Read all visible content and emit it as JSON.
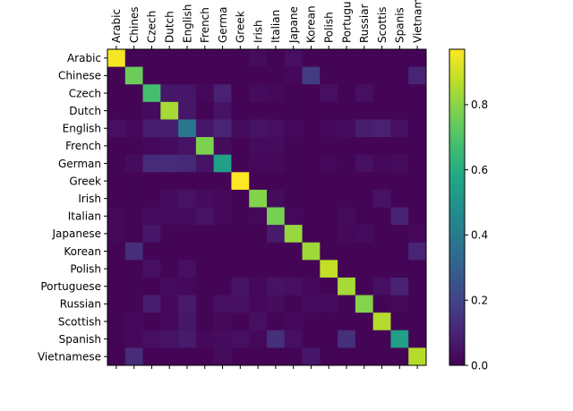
{
  "chart_data": {
    "type": "heatmap",
    "title": "",
    "xlabel": "",
    "ylabel": "",
    "x_tick_labels_displayed": [
      "Arabic",
      "Chines",
      "Czech",
      "Dutch",
      "English",
      "French",
      "Germa",
      "Greek",
      "Irish",
      "Italian",
      "Japane",
      "Korean",
      "Polish",
      "Portugu",
      "Russiar",
      "Scottis",
      "Spanis",
      "Vietnam"
    ],
    "y_tick_labels": [
      "Arabic",
      "Chinese",
      "Czech",
      "Dutch",
      "English",
      "French",
      "German",
      "Greek",
      "Irish",
      "Italian",
      "Japanese",
      "Korean",
      "Polish",
      "Portuguese",
      "Russian",
      "Scottish",
      "Spanish",
      "Vietnamese"
    ],
    "colorbar": {
      "min": 0.0,
      "max": 0.97,
      "ticks": [
        0.0,
        0.2,
        0.4,
        0.6,
        0.8
      ],
      "tick_labels": [
        "0.0",
        "0.2",
        "0.4",
        "0.6",
        "0.8"
      ],
      "colormap": "viridis"
    },
    "matrix": [
      [
        0.96,
        0.01,
        0.01,
        0.01,
        0.01,
        0.01,
        0.01,
        0.01,
        0.03,
        0.01,
        0.04,
        0.01,
        0.01,
        0.01,
        0.01,
        0.01,
        0.01,
        0.01
      ],
      [
        0.01,
        0.75,
        0.01,
        0.01,
        0.01,
        0.01,
        0.01,
        0.01,
        0.01,
        0.01,
        0.02,
        0.17,
        0.01,
        0.01,
        0.01,
        0.01,
        0.01,
        0.1
      ],
      [
        0.01,
        0.01,
        0.68,
        0.06,
        0.06,
        0.02,
        0.09,
        0.01,
        0.03,
        0.02,
        0.01,
        0.01,
        0.04,
        0.01,
        0.04,
        0.01,
        0.01,
        0.01
      ],
      [
        0.01,
        0.01,
        0.03,
        0.84,
        0.06,
        0.01,
        0.05,
        0.01,
        0.01,
        0.01,
        0.01,
        0.01,
        0.01,
        0.01,
        0.01,
        0.01,
        0.01,
        0.01
      ],
      [
        0.04,
        0.02,
        0.08,
        0.08,
        0.38,
        0.06,
        0.1,
        0.03,
        0.05,
        0.04,
        0.02,
        0.01,
        0.02,
        0.03,
        0.08,
        0.09,
        0.04,
        0.01
      ],
      [
        0.01,
        0.01,
        0.02,
        0.03,
        0.05,
        0.78,
        0.03,
        0.01,
        0.03,
        0.03,
        0.01,
        0.01,
        0.01,
        0.01,
        0.01,
        0.01,
        0.01,
        0.01
      ],
      [
        0.01,
        0.03,
        0.12,
        0.12,
        0.11,
        0.05,
        0.55,
        0.01,
        0.02,
        0.02,
        0.01,
        0.01,
        0.02,
        0.01,
        0.04,
        0.02,
        0.03,
        0.01
      ],
      [
        0.01,
        0.01,
        0.01,
        0.01,
        0.01,
        0.01,
        0.01,
        0.97,
        0.01,
        0.01,
        0.01,
        0.01,
        0.01,
        0.01,
        0.01,
        0.01,
        0.01,
        0.01
      ],
      [
        0.01,
        0.01,
        0.01,
        0.03,
        0.05,
        0.03,
        0.02,
        0.01,
        0.79,
        0.03,
        0.01,
        0.01,
        0.01,
        0.01,
        0.01,
        0.05,
        0.01,
        0.01
      ],
      [
        0.02,
        0.01,
        0.03,
        0.03,
        0.03,
        0.05,
        0.02,
        0.01,
        0.02,
        0.77,
        0.02,
        0.01,
        0.01,
        0.03,
        0.01,
        0.01,
        0.09,
        0.01
      ],
      [
        0.02,
        0.01,
        0.06,
        0.01,
        0.01,
        0.01,
        0.01,
        0.01,
        0.01,
        0.07,
        0.82,
        0.01,
        0.01,
        0.02,
        0.03,
        0.01,
        0.01,
        0.02
      ],
      [
        0.01,
        0.13,
        0.01,
        0.01,
        0.01,
        0.01,
        0.01,
        0.01,
        0.01,
        0.01,
        0.01,
        0.83,
        0.01,
        0.01,
        0.01,
        0.01,
        0.01,
        0.1
      ],
      [
        0.01,
        0.01,
        0.04,
        0.01,
        0.04,
        0.01,
        0.01,
        0.01,
        0.01,
        0.01,
        0.01,
        0.01,
        0.88,
        0.01,
        0.01,
        0.01,
        0.01,
        0.01
      ],
      [
        0.01,
        0.01,
        0.01,
        0.03,
        0.02,
        0.01,
        0.01,
        0.05,
        0.02,
        0.05,
        0.04,
        0.02,
        0.01,
        0.84,
        0.01,
        0.04,
        0.09,
        0.01
      ],
      [
        0.01,
        0.01,
        0.08,
        0.02,
        0.07,
        0.01,
        0.04,
        0.04,
        0.02,
        0.03,
        0.01,
        0.03,
        0.03,
        0.01,
        0.79,
        0.01,
        0.02,
        0.01
      ],
      [
        0.01,
        0.02,
        0.01,
        0.02,
        0.06,
        0.01,
        0.02,
        0.01,
        0.04,
        0.01,
        0.02,
        0.01,
        0.01,
        0.01,
        0.01,
        0.86,
        0.01,
        0.01
      ],
      [
        0.01,
        0.02,
        0.04,
        0.05,
        0.07,
        0.02,
        0.03,
        0.04,
        0.02,
        0.13,
        0.04,
        0.01,
        0.01,
        0.13,
        0.01,
        0.01,
        0.55,
        0.01
      ],
      [
        0.01,
        0.12,
        0.01,
        0.01,
        0.01,
        0.01,
        0.03,
        0.01,
        0.01,
        0.01,
        0.01,
        0.06,
        0.01,
        0.01,
        0.01,
        0.01,
        0.01,
        0.86
      ]
    ]
  }
}
